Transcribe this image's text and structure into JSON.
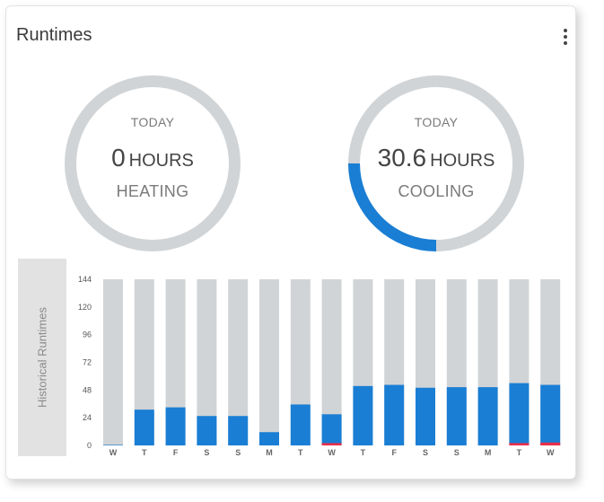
{
  "card": {
    "title": "Runtimes",
    "menu_icon": "more-vert-icon"
  },
  "gauges": {
    "heating": {
      "today_label": "TODAY",
      "value": "0",
      "unit": "HOURS",
      "mode": "HEATING",
      "fraction": 0
    },
    "cooling": {
      "today_label": "TODAY",
      "value": "30.6",
      "unit": "HOURS",
      "mode": "COOLING",
      "fraction": 0.25
    }
  },
  "colors": {
    "cooling": "#1a7ed4",
    "heating": "#e8304a",
    "track": "#d1d4d6"
  },
  "chart_data": {
    "type": "bar",
    "ylabel": "Historical Runtimes",
    "ylim": [
      0,
      144
    ],
    "yticks": [
      0,
      24,
      48,
      72,
      96,
      120,
      144
    ],
    "categories": [
      "W",
      "T",
      "F",
      "S",
      "S",
      "M",
      "T",
      "W",
      "T",
      "F",
      "S",
      "S",
      "M",
      "T",
      "W"
    ],
    "series": [
      {
        "values": [
          0.5,
          31,
          33,
          25.5,
          25.5,
          11.5,
          35.5,
          27,
          51.5,
          52.5,
          50,
          50.5,
          50.5,
          54,
          52.5
        ]
      },
      {
        "values": [
          0,
          0,
          0,
          0,
          0,
          0,
          0,
          2,
          0,
          0,
          0,
          0,
          0,
          2,
          2.5
        ]
      }
    ]
  }
}
